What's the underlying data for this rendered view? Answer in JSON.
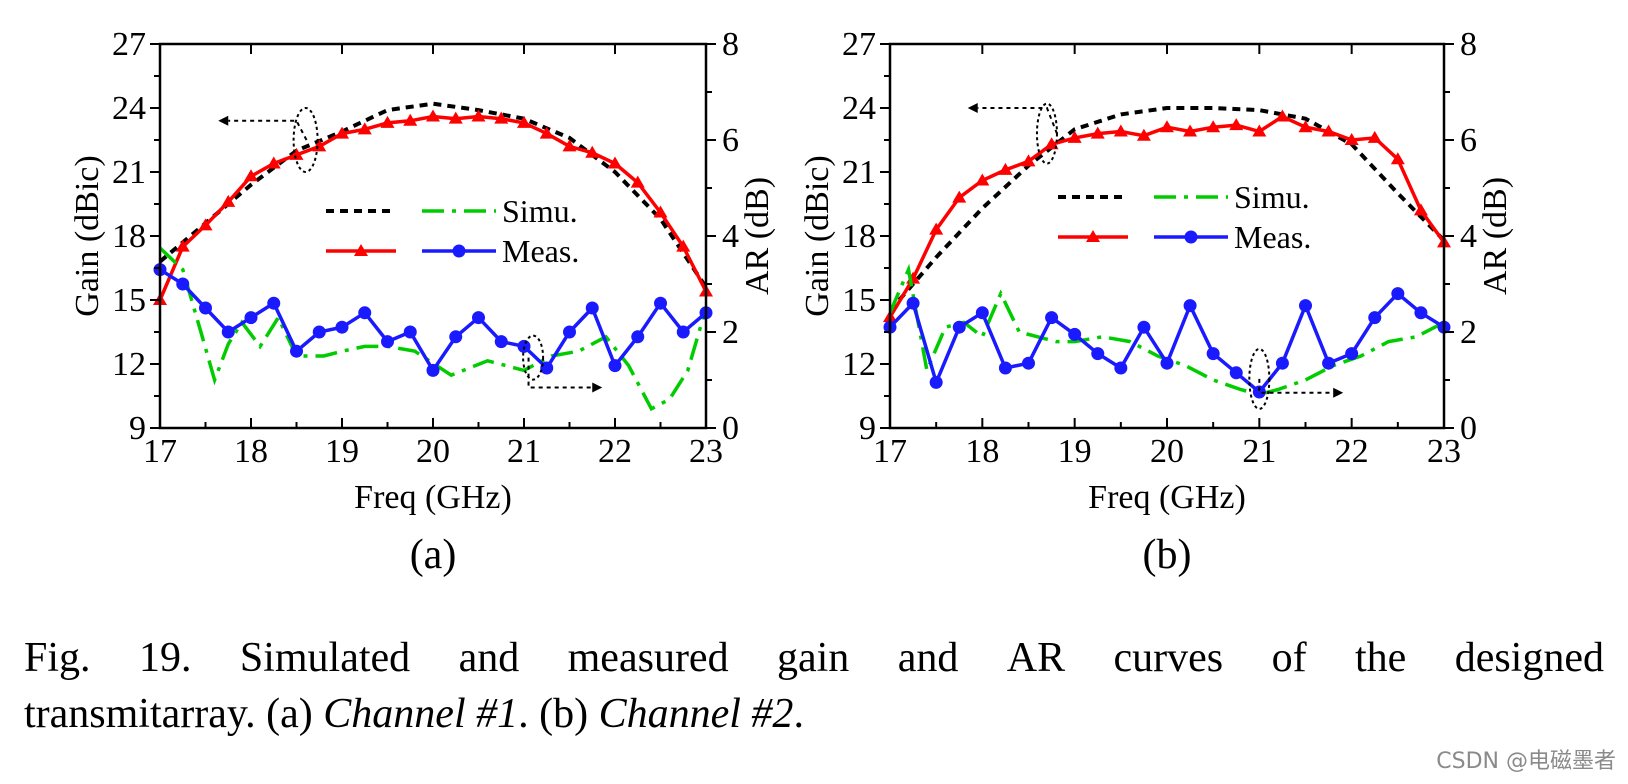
{
  "chart_data": [
    {
      "type": "line",
      "panel_label": "(a)",
      "xlabel": "Freq (GHz)",
      "ylabel": "Gain (dBic)",
      "y2label": "AR (dB)",
      "xlim": [
        17,
        23
      ],
      "ylim": [
        9,
        27
      ],
      "y2lim": [
        0,
        8
      ],
      "xticks": [
        "17",
        "18",
        "19",
        "20",
        "21",
        "22",
        "23"
      ],
      "yticks": [
        "9",
        "12",
        "15",
        "18",
        "21",
        "24",
        "27"
      ],
      "y2ticks": [
        "0",
        "2",
        "4",
        "6",
        "8"
      ],
      "legend": {
        "simu_label": "Simu.",
        "meas_label": "Meas.",
        "position": "center"
      },
      "series": [
        {
          "axis": "left",
          "kind": "sim-gain",
          "color": "#000000",
          "style": "dotted",
          "x": [
            17,
            17.5,
            18,
            18.5,
            19,
            19.5,
            20,
            20.5,
            21,
            21.5,
            22,
            22.5,
            23
          ],
          "y": [
            16.8,
            18.6,
            20.4,
            22.0,
            22.9,
            23.9,
            24.2,
            23.9,
            23.5,
            22.6,
            21.0,
            18.8,
            15.6
          ]
        },
        {
          "axis": "left",
          "kind": "meas-gain",
          "color": "#ff0000",
          "style": "solid",
          "marker": "triangle",
          "x": [
            17,
            17.25,
            17.5,
            17.75,
            18,
            18.25,
            18.5,
            18.75,
            19,
            19.25,
            19.5,
            19.75,
            20,
            20.25,
            20.5,
            20.75,
            21,
            21.25,
            21.5,
            21.75,
            22,
            22.25,
            22.5,
            22.75,
            23
          ],
          "y": [
            15.0,
            17.5,
            18.5,
            19.6,
            20.8,
            21.4,
            21.8,
            22.2,
            22.8,
            23.0,
            23.3,
            23.4,
            23.6,
            23.5,
            23.6,
            23.5,
            23.3,
            22.8,
            22.2,
            21.9,
            21.4,
            20.5,
            19.1,
            17.5,
            15.4
          ]
        },
        {
          "axis": "right",
          "kind": "sim-ar",
          "color": "#00cc00",
          "style": "dashdot",
          "x": [
            17,
            17.25,
            17.45,
            17.6,
            17.75,
            17.9,
            18.1,
            18.3,
            18.5,
            18.8,
            19,
            19.25,
            19.5,
            19.8,
            20.2,
            20.6,
            21,
            21.3,
            21.6,
            21.9,
            22.15,
            22.4,
            22.6,
            22.8,
            23
          ],
          "y": [
            3.75,
            3.3,
            2.0,
            1.0,
            1.75,
            2.2,
            1.7,
            2.3,
            1.5,
            1.5,
            1.6,
            1.7,
            1.7,
            1.6,
            1.1,
            1.4,
            1.2,
            1.5,
            1.6,
            1.9,
            1.3,
            0.4,
            0.6,
            1.2,
            2.5
          ]
        },
        {
          "axis": "right",
          "kind": "meas-ar",
          "color": "#1a1aff",
          "style": "solid",
          "marker": "circle",
          "x": [
            17,
            17.25,
            17.5,
            17.75,
            18,
            18.25,
            18.5,
            18.75,
            19,
            19.25,
            19.5,
            19.75,
            20,
            20.25,
            20.5,
            20.75,
            21,
            21.25,
            21.5,
            21.75,
            22,
            22.25,
            22.5,
            22.75,
            23
          ],
          "y": [
            3.3,
            3.0,
            2.5,
            2.0,
            2.3,
            2.6,
            1.6,
            2.0,
            2.1,
            2.4,
            1.8,
            2.0,
            1.2,
            1.9,
            2.3,
            1.8,
            1.7,
            1.25,
            2.0,
            2.5,
            1.3,
            1.9,
            2.6,
            2.0,
            2.4
          ]
        }
      ]
    },
    {
      "type": "line",
      "panel_label": "(b)",
      "xlabel": "Freq (GHz)",
      "ylabel": "Gain (dBic)",
      "y2label": "AR (dB)",
      "xlim": [
        17,
        23
      ],
      "ylim": [
        9,
        27
      ],
      "y2lim": [
        0,
        8
      ],
      "xticks": [
        "17",
        "18",
        "19",
        "20",
        "21",
        "22",
        "23"
      ],
      "yticks": [
        "9",
        "12",
        "15",
        "18",
        "21",
        "24",
        "27"
      ],
      "y2ticks": [
        "0",
        "2",
        "4",
        "6",
        "8"
      ],
      "legend": {
        "simu_label": "Simu.",
        "meas_label": "Meas.",
        "position": "center"
      },
      "series": [
        {
          "axis": "left",
          "kind": "sim-gain",
          "color": "#000000",
          "style": "dotted",
          "x": [
            17,
            17.5,
            18,
            18.5,
            19,
            19.5,
            20,
            20.5,
            21,
            21.5,
            22,
            22.5,
            23
          ],
          "y": [
            14.5,
            17.0,
            19.3,
            21.3,
            23.0,
            23.7,
            24.0,
            24.0,
            23.9,
            23.5,
            22.3,
            20.0,
            17.8
          ]
        },
        {
          "axis": "left",
          "kind": "meas-gain",
          "color": "#ff0000",
          "style": "solid",
          "marker": "triangle",
          "x": [
            17,
            17.25,
            17.5,
            17.75,
            18,
            18.25,
            18.5,
            18.75,
            19,
            19.25,
            19.5,
            19.75,
            20,
            20.25,
            20.5,
            20.75,
            21,
            21.25,
            21.5,
            21.75,
            22,
            22.25,
            22.5,
            22.75,
            23
          ],
          "y": [
            14.2,
            16.0,
            18.3,
            19.8,
            20.6,
            21.1,
            21.5,
            22.3,
            22.6,
            22.8,
            22.9,
            22.7,
            23.1,
            22.9,
            23.1,
            23.2,
            22.9,
            23.6,
            23.1,
            22.9,
            22.5,
            22.6,
            21.6,
            19.2,
            17.7
          ]
        },
        {
          "axis": "right",
          "kind": "sim-ar",
          "color": "#00cc00",
          "style": "dashdot",
          "x": [
            17,
            17.2,
            17.4,
            17.6,
            17.8,
            18,
            18.2,
            18.4,
            18.6,
            18.8,
            19,
            19.3,
            19.6,
            19.9,
            20.2,
            20.5,
            20.8,
            21.0,
            21.2,
            21.5,
            21.8,
            22.1,
            22.4,
            22.7,
            23
          ],
          "y": [
            2.4,
            3.3,
            1.2,
            2.1,
            2.2,
            1.9,
            2.8,
            2.0,
            1.9,
            1.8,
            1.8,
            1.9,
            1.8,
            1.5,
            1.3,
            1.0,
            0.8,
            0.7,
            0.8,
            1.0,
            1.3,
            1.5,
            1.8,
            1.9,
            2.2
          ]
        },
        {
          "axis": "right",
          "kind": "meas-ar",
          "color": "#1a1aff",
          "style": "solid",
          "marker": "circle",
          "x": [
            17,
            17.25,
            17.5,
            17.75,
            18,
            18.25,
            18.5,
            18.75,
            19,
            19.25,
            19.5,
            19.75,
            20,
            20.25,
            20.5,
            20.75,
            21,
            21.25,
            21.5,
            21.75,
            22,
            22.25,
            22.5,
            22.75,
            23
          ],
          "y": [
            2.1,
            2.6,
            0.95,
            2.1,
            2.4,
            1.25,
            1.35,
            2.3,
            1.95,
            1.55,
            1.25,
            2.1,
            1.35,
            2.55,
            1.55,
            1.15,
            0.75,
            1.35,
            2.55,
            1.35,
            1.55,
            2.3,
            2.8,
            2.4,
            2.1
          ]
        }
      ]
    }
  ],
  "caption": {
    "line1": [
      "Fig.",
      "19.",
      "Simulated",
      "and",
      "measured",
      "gain",
      "and",
      "AR",
      "curves",
      "of",
      "the",
      "designed"
    ],
    "line2_a": "transmitarray. (a) ",
    "line2_b": "Channel #1",
    "line2_c": ". (b) ",
    "line2_d": "Channel #2",
    "line2_e": "."
  },
  "watermark": "CSDN @电磁墨者"
}
